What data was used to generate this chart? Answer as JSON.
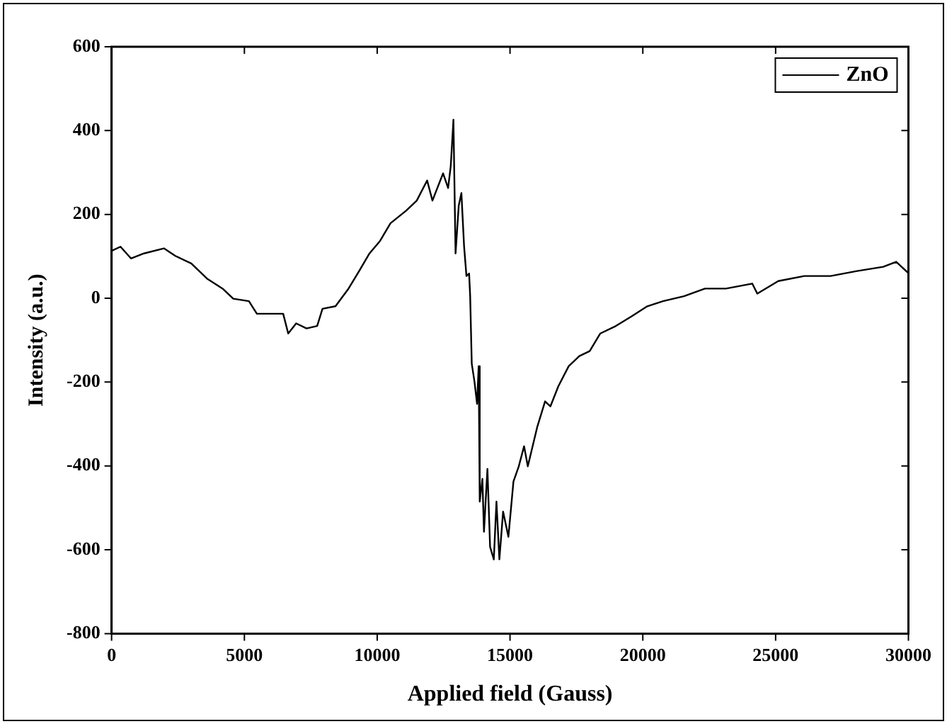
{
  "chart_data": {
    "type": "line",
    "xlabel": "Applied field (Gauss)",
    "ylabel": "Intensity (a.u.)",
    "xlim": [
      0,
      30000
    ],
    "xticks": [
      0,
      5000,
      10000,
      15000,
      20000,
      25000,
      30000
    ],
    "ylim": [
      -800,
      600
    ],
    "yticks": [
      -800,
      -600,
      -400,
      -200,
      0,
      200,
      400,
      600
    ],
    "grid": false,
    "legend": "top right",
    "marker": "none",
    "line_style": "solid",
    "series": [
      {
        "name": "ZnO",
        "color": "#000000",
        "x": [
          0,
          335,
          730,
          1220,
          1970,
          2400,
          3000,
          3590,
          4180,
          4580,
          5170,
          5470,
          5960,
          6460,
          6650,
          6950,
          7340,
          7740,
          7940,
          8430,
          8920,
          9320,
          9710,
          10110,
          10500,
          11090,
          11490,
          11880,
          12080,
          12480,
          12670,
          12770,
          12870,
          12950,
          13070,
          13170,
          13270,
          13360,
          13460,
          13500,
          13560,
          13660,
          13760,
          13820,
          13860,
          13960,
          14020,
          14150,
          14250,
          14390,
          14490,
          14600,
          14740,
          14940,
          15130,
          15330,
          15530,
          15670,
          16030,
          16320,
          16520,
          16820,
          17210,
          17610,
          18000,
          18400,
          18990,
          19580,
          20170,
          20760,
          21550,
          22340,
          23130,
          24120,
          24310,
          25100,
          26080,
          27070,
          28060,
          29050,
          29540,
          30000
        ],
        "values": [
          113,
          123,
          95,
          107,
          119,
          101,
          83,
          47,
          23,
          -1,
          -7,
          -37,
          -37,
          -37,
          -84,
          -60,
          -72,
          -66,
          -25,
          -19,
          23,
          65,
          107,
          137,
          179,
          209,
          233,
          281,
          233,
          298,
          263,
          316,
          426,
          107,
          221,
          251,
          125,
          53,
          59,
          5,
          -156,
          -198,
          -252,
          -162,
          -485,
          -431,
          -557,
          -407,
          -593,
          -623,
          -485,
          -623,
          -509,
          -569,
          -437,
          -401,
          -353,
          -401,
          -306,
          -246,
          -258,
          -210,
          -162,
          -138,
          -126,
          -84,
          -66,
          -43,
          -19,
          -7,
          5,
          23,
          23,
          35,
          11,
          41,
          53,
          53,
          65,
          75,
          87,
          60
        ]
      }
    ]
  }
}
